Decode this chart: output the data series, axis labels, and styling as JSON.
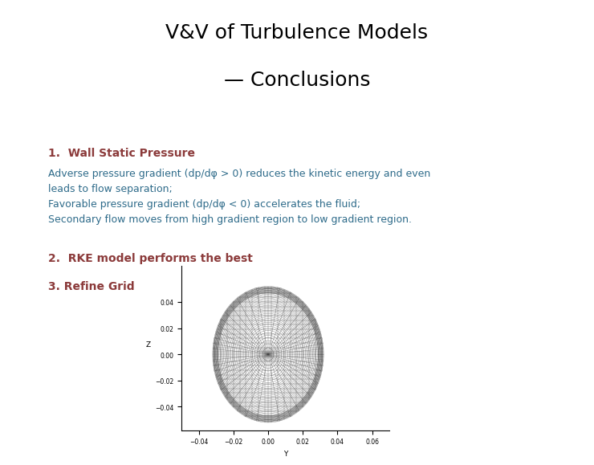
{
  "title_line1": "V&V of Turbulence Models",
  "title_line2": "— Conclusions",
  "title_fontsize": 18,
  "title_color": "#000000",
  "item1_heading": "1.  Wall Static Pressure",
  "item1_heading_color": "#8B3A3A",
  "item1_heading_fontsize": 10,
  "item1_text": "Adverse pressure gradient (dp/dφ > 0) reduces the kinetic energy and even\nleads to flow separation;\nFavorable pressure gradient (dp/dφ < 0) accelerates the fluid;\nSecondary flow moves from high gradient region to low gradient region.",
  "item1_text_color": "#2E6B8A",
  "item1_text_fontsize": 9,
  "item2_heading": "2.  RKE model performs the best",
  "item2_heading_color": "#8B3A3A",
  "item2_heading_fontsize": 10,
  "item3_heading": "3. Refine Grid",
  "item3_heading_color": "#8B3A3A",
  "item3_heading_fontsize": 10,
  "bg_color": "#FFFFFF",
  "ellipse_a": 0.032,
  "ellipse_b": 0.052,
  "n_radial": 35,
  "n_angular": 48,
  "n_horiz": 30,
  "n_vert": 18,
  "mesh_xlim": [
    -0.05,
    0.07
  ],
  "mesh_ylim": [
    -0.058,
    0.068
  ],
  "xticks": [
    -0.04,
    -0.02,
    0,
    0.02,
    0.04,
    0.06
  ],
  "yticks": [
    -0.04,
    -0.02,
    0,
    0.02,
    0.04
  ]
}
